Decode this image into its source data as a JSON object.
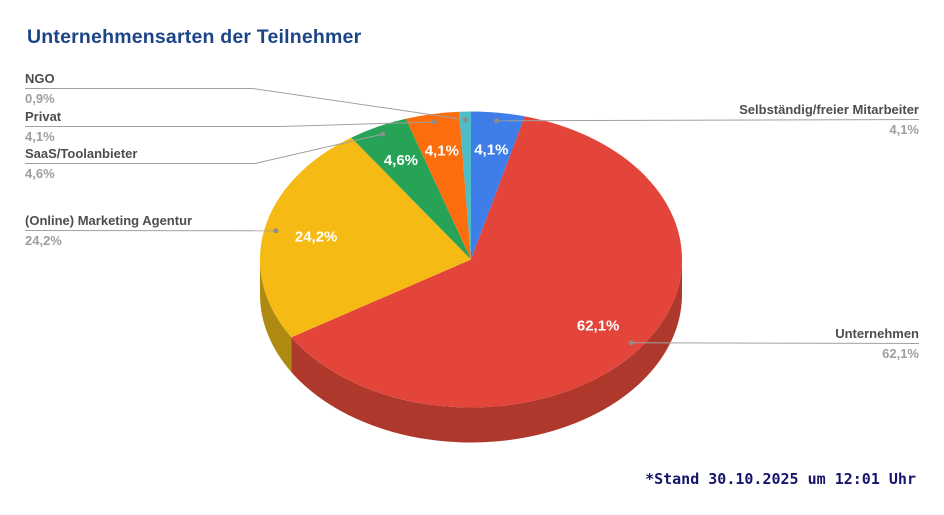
{
  "footnote": "*Stand 30.10.2025 um 12:01 Uhr",
  "colors": {
    "title_color": "#1C4587",
    "footnote_color": "#15156B",
    "label_name_color": "#4D4D4D",
    "label_value_color": "#9E9E9E",
    "callout_line_color": "#A0A0A0",
    "callout_dot_color": "#8C8C8C",
    "slice_label_color": "#FFFFFF"
  },
  "chart_data": {
    "type": "pie",
    "is_3d": true,
    "title": "Unternehmensarten der Teilnehmer",
    "unit": "%",
    "start_angle_deg": 0,
    "direction": "clockwise",
    "legend_position": "labeled-callouts",
    "slices": [
      {
        "label": "Selbständig/freier Mitarbeiter",
        "value": 4.1,
        "display": "4,1%",
        "color": "#3F7EE8",
        "slice_label": true
      },
      {
        "label": "Unternehmen",
        "value": 62.1,
        "display": "62,1%",
        "color": "#E3453A",
        "side_color": "#AE382C",
        "slice_label": true
      },
      {
        "label": "(Online) Marketing Agentur",
        "value": 24.2,
        "display": "24,2%",
        "color": "#F6BA15",
        "side_color": "#AE8B10",
        "slice_label": true
      },
      {
        "label": "SaaS/Toolanbieter",
        "value": 4.6,
        "display": "4,6%",
        "color": "#27A358",
        "slice_label": true
      },
      {
        "label": "Privat",
        "value": 4.1,
        "display": "4,1%",
        "color": "#FC6D0D",
        "slice_label": true
      },
      {
        "label": "NGO",
        "value": 0.9,
        "display": "0,9%",
        "color": "#4DBEC7",
        "slice_label": false
      }
    ]
  }
}
